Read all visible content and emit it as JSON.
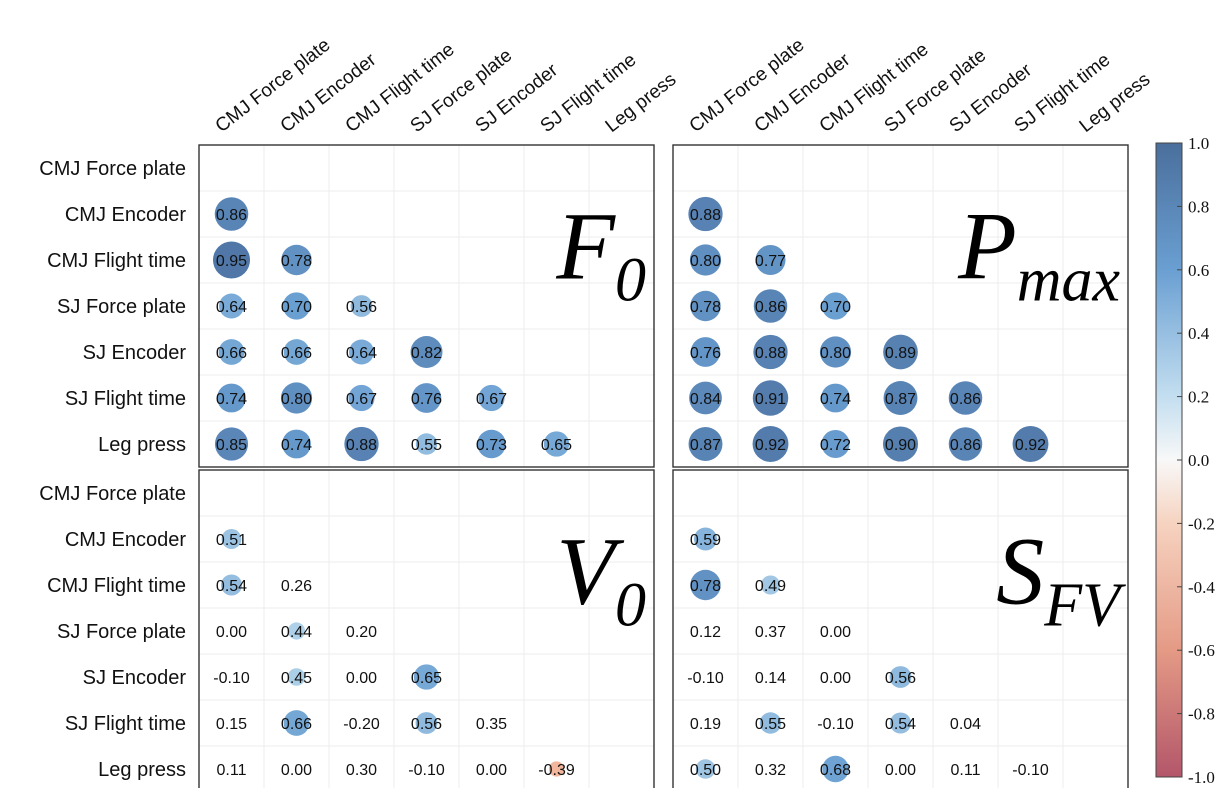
{
  "chart_data": {
    "type": "heatmap",
    "variables": [
      "CMJ Force plate",
      "CMJ Encoder",
      "CMJ Flight time",
      "SJ Force plate",
      "SJ Encoder",
      "SJ Flight time",
      "Leg press"
    ],
    "panels": [
      {
        "title": "F",
        "subscript": "0",
        "matrix": [
          [],
          [
            0.86
          ],
          [
            0.95,
            0.78
          ],
          [
            0.64,
            0.7,
            0.56
          ],
          [
            0.66,
            0.66,
            0.64,
            0.82
          ],
          [
            0.74,
            0.8,
            0.67,
            0.76,
            0.67
          ],
          [
            0.85,
            0.74,
            0.88,
            0.55,
            0.73,
            0.65
          ]
        ]
      },
      {
        "title": "P",
        "subscript": "max",
        "matrix": [
          [],
          [
            0.88
          ],
          [
            0.8,
            0.77
          ],
          [
            0.78,
            0.86,
            0.7
          ],
          [
            0.76,
            0.88,
            0.8,
            0.89
          ],
          [
            0.84,
            0.91,
            0.74,
            0.87,
            0.86
          ],
          [
            0.87,
            0.92,
            0.72,
            0.9,
            0.86,
            0.92
          ]
        ]
      },
      {
        "title": "V",
        "subscript": "0",
        "matrix": [
          [],
          [
            0.51
          ],
          [
            0.54,
            0.26
          ],
          [
            0.0,
            0.44,
            0.2
          ],
          [
            -0.1,
            0.45,
            0.0,
            0.65
          ],
          [
            0.15,
            0.66,
            -0.2,
            0.56,
            0.35
          ],
          [
            0.11,
            0.0,
            0.3,
            -0.1,
            0.0,
            -0.39
          ]
        ]
      },
      {
        "title": "S",
        "subscript": "FV",
        "matrix": [
          [],
          [
            0.59
          ],
          [
            0.78,
            0.49
          ],
          [
            0.12,
            0.37,
            0.0
          ],
          [
            -0.1,
            0.14,
            0.0,
            0.56
          ],
          [
            0.19,
            0.55,
            -0.1,
            0.54,
            0.04
          ],
          [
            0.5,
            0.32,
            0.68,
            0.0,
            0.11,
            -0.1
          ]
        ]
      }
    ],
    "colorbar": {
      "range": [
        -1.0,
        1.0
      ],
      "ticks": [
        "1.0",
        "0.8",
        "0.6",
        "0.4",
        "0.2",
        "0.0",
        "-0.2",
        "-0.4",
        "-0.6",
        "-0.8",
        "-1.0"
      ]
    },
    "significance_threshold": 0.4
  },
  "colors": {
    "positive": "#3a6fb0",
    "neutral": "#ffffff",
    "negative": "#b3263a"
  }
}
